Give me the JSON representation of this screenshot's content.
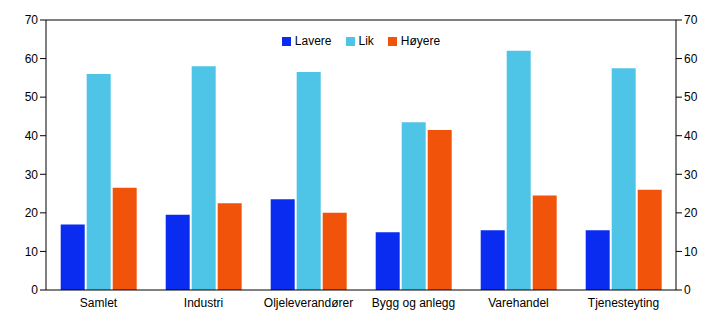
{
  "chart_data": {
    "type": "bar",
    "categories": [
      "Samlet",
      "Industri",
      "Oljeleverandører",
      "Bygg og anlegg",
      "Varehandel",
      "Tjenesteyting"
    ],
    "series": [
      {
        "name": "Lavere",
        "color": "#0a2cf0",
        "values": [
          17,
          19.5,
          23.5,
          15,
          15.5,
          15.5
        ]
      },
      {
        "name": "Lik",
        "color": "#4ec4e6",
        "values": [
          56,
          58,
          56.5,
          43.5,
          62,
          57.5
        ]
      },
      {
        "name": "Høyere",
        "color": "#f2530a",
        "values": [
          26.5,
          22.5,
          20,
          41.5,
          24.5,
          26
        ]
      }
    ],
    "ylim": [
      0,
      70
    ],
    "yticks": [
      0,
      10,
      20,
      30,
      40,
      50,
      60,
      70
    ],
    "y2lim": [
      0,
      70
    ],
    "y2ticks": [
      0,
      10,
      20,
      30,
      40,
      50,
      60,
      70
    ],
    "legend": "top",
    "grid": false
  }
}
